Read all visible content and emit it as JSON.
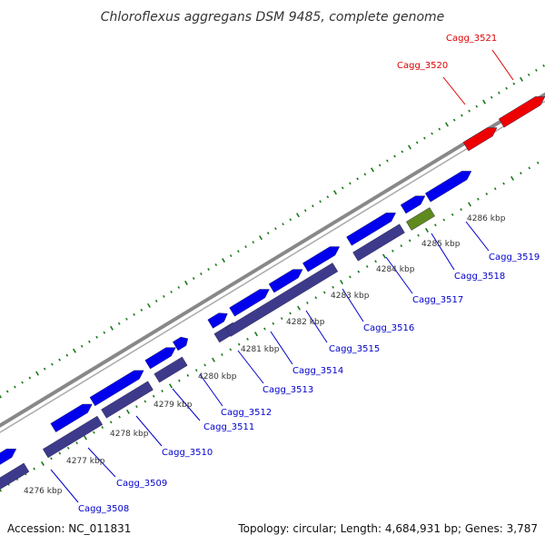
{
  "title": "Chloroflexus aggregans DSM 9485, complete genome",
  "footer": {
    "accession": "Accession: NC_011831",
    "summary": "Topology: circular; Length: 4,684,931 bp; Genes: 3,787"
  },
  "colors": {
    "forward_gene": "#0000ee",
    "reverse_gene": "#3d3a8c",
    "highlight_gene": "#ee0000",
    "rna_gene": "#5f8a1e",
    "backbone": "#888888",
    "tick": "#1a7a1a",
    "label_blue": "#0000cc",
    "label_red": "#dd0000"
  },
  "kbp_labels": [
    "4276 kbp",
    "4277 kbp",
    "4278 kbp",
    "4279 kbp",
    "4280 kbp",
    "4281 kbp",
    "4282 kbp",
    "4283 kbp",
    "4284 kbp",
    "4285 kbp",
    "4286 kbp"
  ],
  "gene_labels": [
    {
      "text": "Cagg_3508",
      "color": "blue"
    },
    {
      "text": "Cagg_3509",
      "color": "blue"
    },
    {
      "text": "Cagg_3510",
      "color": "blue"
    },
    {
      "text": "Cagg_3511",
      "color": "blue"
    },
    {
      "text": "Cagg_3512",
      "color": "blue"
    },
    {
      "text": "Cagg_3513",
      "color": "blue"
    },
    {
      "text": "Cagg_3514",
      "color": "blue"
    },
    {
      "text": "Cagg_3515",
      "color": "blue"
    },
    {
      "text": "Cagg_3516",
      "color": "blue"
    },
    {
      "text": "Cagg_3517",
      "color": "blue"
    },
    {
      "text": "Cagg_3518",
      "color": "blue"
    },
    {
      "text": "Cagg_3519",
      "color": "blue"
    },
    {
      "text": "Cagg_3520",
      "color": "red"
    },
    {
      "text": "Cagg_3521",
      "color": "red"
    }
  ]
}
